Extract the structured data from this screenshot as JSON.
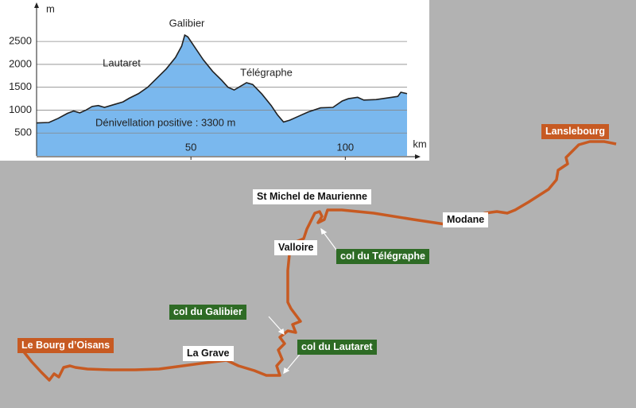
{
  "chart_data": {
    "type": "area",
    "annotations": [
      "Galibier",
      "Lautaret",
      "Télégraphe",
      "Dénivellation positive : 3300 m"
    ],
    "x_label": "km",
    "y_label": "m",
    "x": [
      0,
      4,
      7,
      10,
      12,
      14,
      16,
      18,
      20,
      22,
      25,
      28,
      30,
      33,
      36,
      39,
      42,
      45,
      47,
      48,
      49,
      51,
      54,
      57,
      60,
      62,
      64,
      66,
      68,
      70,
      73,
      76,
      78,
      80,
      82,
      85,
      88,
      92,
      96,
      99,
      101,
      104,
      106,
      110,
      114,
      117,
      118,
      120
    ],
    "values": [
      720,
      730,
      820,
      930,
      980,
      940,
      1000,
      1080,
      1100,
      1060,
      1120,
      1180,
      1260,
      1360,
      1500,
      1700,
      1900,
      2150,
      2400,
      2640,
      2600,
      2400,
      2100,
      1850,
      1650,
      1500,
      1440,
      1520,
      1600,
      1560,
      1350,
      1100,
      900,
      740,
      780,
      870,
      960,
      1050,
      1060,
      1200,
      1250,
      1280,
      1220,
      1230,
      1270,
      1300,
      1390,
      1360
    ],
    "color": "#7ab8ee",
    "xlim": [
      0,
      120
    ],
    "ylim": [
      0,
      3250
    ],
    "xticks": [
      50,
      100
    ],
    "yticks": [
      500,
      1000,
      1500,
      2000,
      2500
    ],
    "grid": true
  },
  "map": {
    "places": [
      "Lanslebourg",
      "St Michel de Maurienne",
      "Modane",
      "Valloire",
      "col du Télégraphe",
      "col du Galibier",
      "col du Lautaret",
      "La Grave",
      "Le Bourg d’Oisans"
    ]
  }
}
